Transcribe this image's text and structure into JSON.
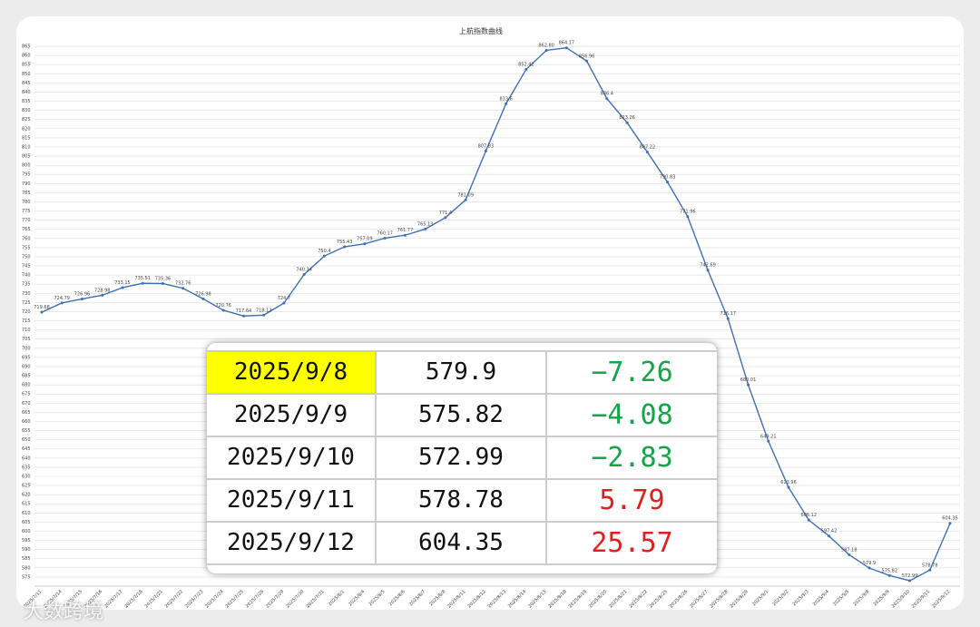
{
  "chart_data": {
    "type": "line",
    "title": "上航指数曲线",
    "color": "#3d6fb6",
    "grid": true,
    "categories": [
      "2025/7/11",
      "2025/7/14",
      "2025/7/15",
      "2025/7/16",
      "2025/7/17",
      "2025/7/18",
      "2025/7/21",
      "2025/7/22",
      "2025/7/23",
      "2025/7/24",
      "2025/7/25",
      "2025/7/28",
      "2025/7/29",
      "2025/7/30",
      "2025/7/31",
      "2025/8/1",
      "2025/8/4",
      "2025/8/5",
      "2025/8/6",
      "2025/8/7",
      "2025/8/8",
      "2025/8/11",
      "2025/8/12",
      "2025/8/13",
      "2025/8/14",
      "2025/8/15",
      "2025/8/18",
      "2025/8/19",
      "2025/8/20",
      "2025/8/21",
      "2025/8/22",
      "2025/8/25",
      "2025/8/26",
      "2025/8/27",
      "2025/8/28",
      "2025/8/29",
      "2025/9/1",
      "2025/9/2",
      "2025/9/3",
      "2025/9/4",
      "2025/9/5",
      "2025/9/8",
      "2025/9/9",
      "2025/9/10",
      "2025/9/11",
      "2025/9/12"
    ],
    "values": [
      719.68,
      724.79,
      726.96,
      728.98,
      733.15,
      735.51,
      735.36,
      732.76,
      726.98,
      720.76,
      717.64,
      718.12,
      724.7,
      740.34,
      750.4,
      755.43,
      757.09,
      760.17,
      761.77,
      765.13,
      771.4,
      781.09,
      807.83,
      833.6,
      852.42,
      862.8,
      864.17,
      856.96,
      836.4,
      823.26,
      807.22,
      790.83,
      771.96,
      742.69,
      716.17,
      680.01,
      649.21,
      623.96,
      606.12,
      597.42,
      587.18,
      579.9,
      575.82,
      572.99,
      578.78,
      604.35
    ],
    "value_labels": [
      "719.68",
      "724.79",
      "726.96",
      "728.98",
      "733.15",
      "735.51",
      "735.36",
      "732.76",
      "726.98",
      "720.76",
      "717.64",
      "718.12",
      "724.7",
      "740.34",
      "750.4",
      "755.43",
      "757.09",
      "760.17",
      "761.77",
      "765.13",
      "771.4",
      "781.09",
      "807.83",
      "833.6",
      "852.42",
      "862.80",
      "864.17",
      "856.96",
      "836.4",
      "823.26",
      "807.22",
      "790.83",
      "771.96",
      "742.69",
      "716.17",
      "680.01",
      "649.21",
      "623.96",
      "606.12",
      "597.42",
      "587.18",
      "579.9",
      "575.82",
      "572.99",
      "578.78",
      "604.35"
    ],
    "ylim": [
      570,
      868
    ],
    "yticks": [
      575,
      580,
      585,
      590,
      595,
      600,
      605,
      610,
      615,
      620,
      625,
      630,
      635,
      640,
      645,
      650,
      655,
      660,
      665,
      670,
      675,
      680,
      685,
      690,
      695,
      700,
      705,
      710,
      715,
      720,
      725,
      730,
      735,
      740,
      745,
      750,
      755,
      760,
      765,
      770,
      775,
      780,
      785,
      790,
      795,
      800,
      805,
      810,
      815,
      820,
      825,
      830,
      835,
      840,
      845,
      850,
      855,
      860,
      865
    ]
  },
  "table": {
    "highlight_color": "#ffff00",
    "rows": [
      [
        "2025/9/8",
        "579.9",
        "−7.26"
      ],
      [
        "2025/9/9",
        "575.82",
        "−4.08"
      ],
      [
        "2025/9/10",
        "572.99",
        "−2.83"
      ],
      [
        "2025/9/11",
        "578.78",
        "5.79"
      ],
      [
        "2025/9/12",
        "604.35",
        "25.57"
      ]
    ],
    "change_colors": [
      "#16a34a",
      "#16a34a",
      "#16a34a",
      "#e02020",
      "#e02020"
    ]
  },
  "watermark": "大数跨境"
}
